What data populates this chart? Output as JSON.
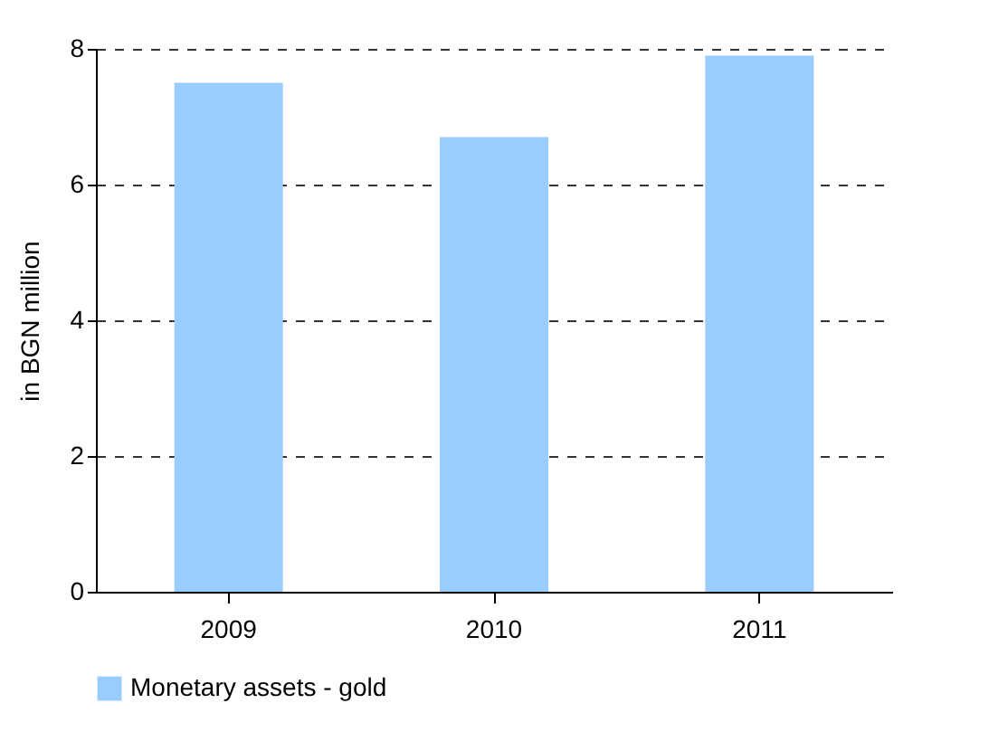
{
  "chart_data": {
    "type": "bar",
    "ylabel": "in BGN million",
    "categories": [
      "2009",
      "2010",
      "2011"
    ],
    "series": [
      {
        "name": "Monetary assets - gold",
        "color": "#99ccff",
        "values": [
          7.5,
          6.7,
          7.9
        ]
      }
    ],
    "ylim": [
      0,
      8
    ],
    "yticks": [
      0,
      2,
      4,
      6,
      8
    ],
    "grid": "y",
    "legend": "bottom"
  }
}
